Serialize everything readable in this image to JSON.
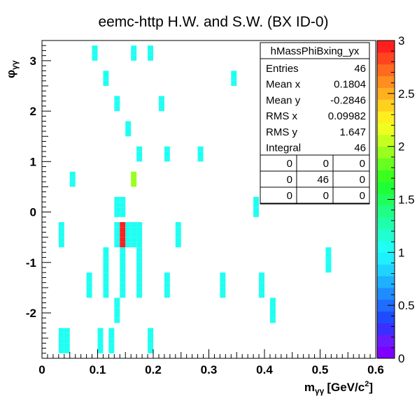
{
  "chart_data": {
    "type": "heatmap",
    "title": "eemc-http H.W. and S.W. (BX ID-0)",
    "xlabel": "m",
    "xlabel_sub": "γγ",
    "xlabel_unit": "[GeV/c",
    "xlabel_unit_sup": "2",
    "xlabel_unit_end": "]",
    "ylabel": "φ",
    "ylabel_sub": "γγ",
    "xlim": [
      0,
      0.6
    ],
    "ylim": [
      -2.9,
      3.4
    ],
    "zlim": [
      0,
      3
    ],
    "x_bin_width": 0.01,
    "y_bin_width": 0.1,
    "x_ticks": [
      "0",
      "0.1",
      "0.2",
      "0.3",
      "0.4",
      "0.5",
      "0.6"
    ],
    "y_ticks": [
      "-2",
      "-1",
      "0",
      "1",
      "2",
      "3"
    ],
    "z_ticks": [
      "0",
      "0.5",
      "1",
      "1.5",
      "2",
      "2.5",
      "3"
    ],
    "palette": [
      "#7f00ff",
      "#6a1aff",
      "#3a2fff",
      "#1f4bff",
      "#1f6cff",
      "#1f8cff",
      "#1fb0ff",
      "#1fd3ff",
      "#1ff0ff",
      "#1ffff2",
      "#1fffd0",
      "#1fffaa",
      "#1fff85",
      "#1fff5c",
      "#1fff35",
      "#3aff1f",
      "#66ff1f",
      "#99ff1f",
      "#c6ff1f",
      "#eeff1f",
      "#ffee1f",
      "#ffd11f",
      "#ffb01f",
      "#ff8d1f",
      "#ff6a1f",
      "#ff451f",
      "#ff1f1f"
    ],
    "bins": [
      {
        "x": 0.09,
        "y": 3.2,
        "z": 1
      },
      {
        "x": 0.09,
        "y": 3.1,
        "z": 1
      },
      {
        "x": 0.09,
        "y": 3.0,
        "z": 1
      },
      {
        "x": 0.16,
        "y": 3.2,
        "z": 1
      },
      {
        "x": 0.16,
        "y": 3.1,
        "z": 1
      },
      {
        "x": 0.16,
        "y": 3.0,
        "z": 1
      },
      {
        "x": 0.19,
        "y": 3.2,
        "z": 1
      },
      {
        "x": 0.19,
        "y": 3.1,
        "z": 1
      },
      {
        "x": 0.19,
        "y": 3.0,
        "z": 1
      },
      {
        "x": 0.11,
        "y": 2.7,
        "z": 1
      },
      {
        "x": 0.11,
        "y": 2.6,
        "z": 1
      },
      {
        "x": 0.11,
        "y": 2.5,
        "z": 1
      },
      {
        "x": 0.34,
        "y": 2.7,
        "z": 1
      },
      {
        "x": 0.34,
        "y": 2.6,
        "z": 1
      },
      {
        "x": 0.34,
        "y": 2.5,
        "z": 1
      },
      {
        "x": 0.13,
        "y": 2.2,
        "z": 1
      },
      {
        "x": 0.13,
        "y": 2.1,
        "z": 1
      },
      {
        "x": 0.13,
        "y": 2.0,
        "z": 1
      },
      {
        "x": 0.21,
        "y": 2.2,
        "z": 1
      },
      {
        "x": 0.21,
        "y": 2.1,
        "z": 1
      },
      {
        "x": 0.21,
        "y": 2.0,
        "z": 1
      },
      {
        "x": 0.15,
        "y": 1.7,
        "z": 1
      },
      {
        "x": 0.15,
        "y": 1.6,
        "z": 1
      },
      {
        "x": 0.15,
        "y": 1.5,
        "z": 1
      },
      {
        "x": 0.17,
        "y": 1.2,
        "z": 1
      },
      {
        "x": 0.17,
        "y": 1.1,
        "z": 1
      },
      {
        "x": 0.17,
        "y": 1.0,
        "z": 1
      },
      {
        "x": 0.22,
        "y": 1.2,
        "z": 1
      },
      {
        "x": 0.22,
        "y": 1.1,
        "z": 1
      },
      {
        "x": 0.22,
        "y": 1.0,
        "z": 1
      },
      {
        "x": 0.28,
        "y": 1.2,
        "z": 1
      },
      {
        "x": 0.28,
        "y": 1.1,
        "z": 1
      },
      {
        "x": 0.28,
        "y": 1.0,
        "z": 1
      },
      {
        "x": 0.05,
        "y": 0.7,
        "z": 1
      },
      {
        "x": 0.05,
        "y": 0.6,
        "z": 1
      },
      {
        "x": 0.05,
        "y": 0.5,
        "z": 1
      },
      {
        "x": 0.16,
        "y": 0.7,
        "z": 2
      },
      {
        "x": 0.16,
        "y": 0.6,
        "z": 2
      },
      {
        "x": 0.16,
        "y": 0.5,
        "z": 2
      },
      {
        "x": 0.13,
        "y": 0.2,
        "z": 1
      },
      {
        "x": 0.14,
        "y": 0.2,
        "z": 1
      },
      {
        "x": 0.13,
        "y": 0.1,
        "z": 1
      },
      {
        "x": 0.14,
        "y": 0.1,
        "z": 1
      },
      {
        "x": 0.13,
        "y": 0.0,
        "z": 1
      },
      {
        "x": 0.14,
        "y": 0.0,
        "z": 1
      },
      {
        "x": 0.13,
        "y": -0.1,
        "z": 1
      },
      {
        "x": 0.14,
        "y": -0.1,
        "z": 1
      },
      {
        "x": 0.38,
        "y": 0.2,
        "z": 1
      },
      {
        "x": 0.38,
        "y": 0.1,
        "z": 1
      },
      {
        "x": 0.38,
        "y": 0.0,
        "z": 1
      },
      {
        "x": 0.38,
        "y": -0.1,
        "z": 1
      },
      {
        "x": 0.03,
        "y": -0.3,
        "z": 1
      },
      {
        "x": 0.03,
        "y": -0.4,
        "z": 1
      },
      {
        "x": 0.03,
        "y": -0.5,
        "z": 1
      },
      {
        "x": 0.03,
        "y": -0.6,
        "z": 1
      },
      {
        "x": 0.03,
        "y": -0.7,
        "z": 1
      },
      {
        "x": 0.13,
        "y": -0.3,
        "z": 1
      },
      {
        "x": 0.13,
        "y": -0.4,
        "z": 1
      },
      {
        "x": 0.13,
        "y": -0.5,
        "z": 1
      },
      {
        "x": 0.13,
        "y": -0.6,
        "z": 1
      },
      {
        "x": 0.13,
        "y": -0.7,
        "z": 1
      },
      {
        "x": 0.14,
        "y": -0.3,
        "z": 3
      },
      {
        "x": 0.14,
        "y": -0.4,
        "z": 3
      },
      {
        "x": 0.14,
        "y": -0.5,
        "z": 3
      },
      {
        "x": 0.14,
        "y": -0.6,
        "z": 3
      },
      {
        "x": 0.14,
        "y": -0.7,
        "z": 3
      },
      {
        "x": 0.15,
        "y": -0.3,
        "z": 1
      },
      {
        "x": 0.15,
        "y": -0.4,
        "z": 1
      },
      {
        "x": 0.15,
        "y": -0.5,
        "z": 1
      },
      {
        "x": 0.15,
        "y": -0.6,
        "z": 1
      },
      {
        "x": 0.15,
        "y": -0.7,
        "z": 1
      },
      {
        "x": 0.16,
        "y": -0.3,
        "z": 1
      },
      {
        "x": 0.16,
        "y": -0.4,
        "z": 1
      },
      {
        "x": 0.16,
        "y": -0.5,
        "z": 1
      },
      {
        "x": 0.16,
        "y": -0.6,
        "z": 1
      },
      {
        "x": 0.16,
        "y": -0.7,
        "z": 1
      },
      {
        "x": 0.17,
        "y": -0.3,
        "z": 1
      },
      {
        "x": 0.17,
        "y": -0.4,
        "z": 1
      },
      {
        "x": 0.17,
        "y": -0.5,
        "z": 1
      },
      {
        "x": 0.17,
        "y": -0.6,
        "z": 1
      },
      {
        "x": 0.17,
        "y": -0.7,
        "z": 1
      },
      {
        "x": 0.24,
        "y": -0.3,
        "z": 1
      },
      {
        "x": 0.24,
        "y": -0.4,
        "z": 1
      },
      {
        "x": 0.24,
        "y": -0.5,
        "z": 1
      },
      {
        "x": 0.24,
        "y": -0.6,
        "z": 1
      },
      {
        "x": 0.24,
        "y": -0.7,
        "z": 1
      },
      {
        "x": 0.11,
        "y": -0.8,
        "z": 1
      },
      {
        "x": 0.11,
        "y": -0.9,
        "z": 1
      },
      {
        "x": 0.11,
        "y": -1.0,
        "z": 1
      },
      {
        "x": 0.11,
        "y": -1.1,
        "z": 1
      },
      {
        "x": 0.11,
        "y": -1.2,
        "z": 1
      },
      {
        "x": 0.14,
        "y": -0.8,
        "z": 1
      },
      {
        "x": 0.14,
        "y": -0.9,
        "z": 1
      },
      {
        "x": 0.14,
        "y": -1.0,
        "z": 1
      },
      {
        "x": 0.14,
        "y": -1.1,
        "z": 1
      },
      {
        "x": 0.14,
        "y": -1.2,
        "z": 1
      },
      {
        "x": 0.17,
        "y": -0.8,
        "z": 1
      },
      {
        "x": 0.17,
        "y": -0.9,
        "z": 1
      },
      {
        "x": 0.17,
        "y": -1.0,
        "z": 1
      },
      {
        "x": 0.17,
        "y": -1.1,
        "z": 1
      },
      {
        "x": 0.17,
        "y": -1.2,
        "z": 1
      },
      {
        "x": 0.51,
        "y": -0.8,
        "z": 1
      },
      {
        "x": 0.51,
        "y": -0.9,
        "z": 1
      },
      {
        "x": 0.51,
        "y": -1.0,
        "z": 1
      },
      {
        "x": 0.51,
        "y": -1.1,
        "z": 1
      },
      {
        "x": 0.51,
        "y": -1.2,
        "z": 1
      },
      {
        "x": 0.08,
        "y": -1.3,
        "z": 1
      },
      {
        "x": 0.08,
        "y": -1.4,
        "z": 1
      },
      {
        "x": 0.08,
        "y": -1.5,
        "z": 1
      },
      {
        "x": 0.08,
        "y": -1.6,
        "z": 1
      },
      {
        "x": 0.08,
        "y": -1.7,
        "z": 1
      },
      {
        "x": 0.11,
        "y": -1.3,
        "z": 1
      },
      {
        "x": 0.11,
        "y": -1.4,
        "z": 1
      },
      {
        "x": 0.11,
        "y": -1.5,
        "z": 1
      },
      {
        "x": 0.11,
        "y": -1.6,
        "z": 1
      },
      {
        "x": 0.11,
        "y": -1.7,
        "z": 1
      },
      {
        "x": 0.14,
        "y": -1.3,
        "z": 1
      },
      {
        "x": 0.14,
        "y": -1.4,
        "z": 1
      },
      {
        "x": 0.14,
        "y": -1.5,
        "z": 1
      },
      {
        "x": 0.14,
        "y": -1.6,
        "z": 1
      },
      {
        "x": 0.14,
        "y": -1.7,
        "z": 1
      },
      {
        "x": 0.17,
        "y": -1.3,
        "z": 1
      },
      {
        "x": 0.17,
        "y": -1.4,
        "z": 1
      },
      {
        "x": 0.17,
        "y": -1.5,
        "z": 1
      },
      {
        "x": 0.17,
        "y": -1.6,
        "z": 1
      },
      {
        "x": 0.17,
        "y": -1.7,
        "z": 1
      },
      {
        "x": 0.22,
        "y": -1.3,
        "z": 1
      },
      {
        "x": 0.22,
        "y": -1.4,
        "z": 1
      },
      {
        "x": 0.22,
        "y": -1.5,
        "z": 1
      },
      {
        "x": 0.22,
        "y": -1.6,
        "z": 1
      },
      {
        "x": 0.22,
        "y": -1.7,
        "z": 1
      },
      {
        "x": 0.32,
        "y": -1.3,
        "z": 1
      },
      {
        "x": 0.32,
        "y": -1.4,
        "z": 1
      },
      {
        "x": 0.32,
        "y": -1.5,
        "z": 1
      },
      {
        "x": 0.32,
        "y": -1.6,
        "z": 1
      },
      {
        "x": 0.32,
        "y": -1.7,
        "z": 1
      },
      {
        "x": 0.39,
        "y": -1.3,
        "z": 1
      },
      {
        "x": 0.39,
        "y": -1.4,
        "z": 1
      },
      {
        "x": 0.39,
        "y": -1.5,
        "z": 1
      },
      {
        "x": 0.39,
        "y": -1.6,
        "z": 1
      },
      {
        "x": 0.39,
        "y": -1.7,
        "z": 1
      },
      {
        "x": 0.13,
        "y": -1.8,
        "z": 1
      },
      {
        "x": 0.13,
        "y": -1.9,
        "z": 1
      },
      {
        "x": 0.13,
        "y": -2.0,
        "z": 1
      },
      {
        "x": 0.13,
        "y": -2.1,
        "z": 1
      },
      {
        "x": 0.13,
        "y": -2.2,
        "z": 1
      },
      {
        "x": 0.41,
        "y": -1.8,
        "z": 1
      },
      {
        "x": 0.41,
        "y": -1.9,
        "z": 1
      },
      {
        "x": 0.41,
        "y": -2.0,
        "z": 1
      },
      {
        "x": 0.41,
        "y": -2.1,
        "z": 1
      },
      {
        "x": 0.41,
        "y": -2.2,
        "z": 1
      },
      {
        "x": 0.03,
        "y": -2.4,
        "z": 1
      },
      {
        "x": 0.03,
        "y": -2.5,
        "z": 1
      },
      {
        "x": 0.03,
        "y": -2.6,
        "z": 1
      },
      {
        "x": 0.03,
        "y": -2.7,
        "z": 1
      },
      {
        "x": 0.03,
        "y": -2.8,
        "z": 1
      },
      {
        "x": 0.04,
        "y": -2.4,
        "z": 1
      },
      {
        "x": 0.04,
        "y": -2.5,
        "z": 1
      },
      {
        "x": 0.04,
        "y": -2.6,
        "z": 1
      },
      {
        "x": 0.04,
        "y": -2.7,
        "z": 1
      },
      {
        "x": 0.04,
        "y": -2.8,
        "z": 1
      },
      {
        "x": 0.1,
        "y": -2.4,
        "z": 1
      },
      {
        "x": 0.1,
        "y": -2.5,
        "z": 1
      },
      {
        "x": 0.1,
        "y": -2.6,
        "z": 1
      },
      {
        "x": 0.1,
        "y": -2.7,
        "z": 1
      },
      {
        "x": 0.1,
        "y": -2.8,
        "z": 1
      },
      {
        "x": 0.12,
        "y": -2.4,
        "z": 1
      },
      {
        "x": 0.12,
        "y": -2.5,
        "z": 1
      },
      {
        "x": 0.12,
        "y": -2.6,
        "z": 1
      },
      {
        "x": 0.12,
        "y": -2.7,
        "z": 1
      },
      {
        "x": 0.12,
        "y": -2.8,
        "z": 1
      },
      {
        "x": 0.19,
        "y": -2.4,
        "z": 1
      },
      {
        "x": 0.19,
        "y": -2.5,
        "z": 1
      },
      {
        "x": 0.19,
        "y": -2.6,
        "z": 1
      },
      {
        "x": 0.19,
        "y": -2.7,
        "z": 1
      },
      {
        "x": 0.19,
        "y": -2.8,
        "z": 1
      }
    ],
    "stats_box": {
      "title": "hMassPhiBxing_yx",
      "rows": [
        {
          "label": "Entries",
          "value": "46"
        },
        {
          "label": "Mean x",
          "value": "0.1804"
        },
        {
          "label": "Mean y",
          "value": "-0.2846"
        },
        {
          "label": "RMS x",
          "value": "0.09982"
        },
        {
          "label": "RMS y",
          "value": "1.647"
        },
        {
          "label": "Integral",
          "value": "46"
        }
      ],
      "grid": [
        [
          "0",
          "0",
          "0"
        ],
        [
          "0",
          "46",
          "0"
        ],
        [
          "0",
          "0",
          "0"
        ]
      ]
    }
  }
}
